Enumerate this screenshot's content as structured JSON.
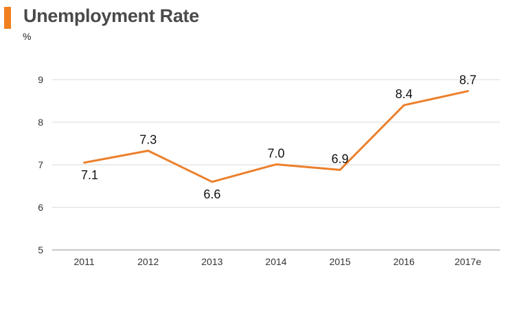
{
  "title": "Unemployment Rate",
  "unit_label": "%",
  "colors": {
    "accent": "#f07f1e",
    "line": "#ec7f2b",
    "grid": "#d9d9d9",
    "axis": "#8c8c8c"
  },
  "chart_data": {
    "type": "line",
    "title": "Unemployment Rate",
    "ylabel": "%",
    "xlabel": "",
    "categories": [
      "2011",
      "2012",
      "2013",
      "2014",
      "2015",
      "2016",
      "2017e"
    ],
    "series": [
      {
        "values": [
          7.05,
          7.33,
          6.6,
          7.01,
          6.88,
          8.4,
          8.73
        ]
      }
    ],
    "data_labels": [
      "7.1",
      "7.3",
      "6.6",
      "7.0",
      "6.9",
      "8.4",
      "8.7"
    ],
    "yticks": [
      "5",
      "6",
      "7",
      "8",
      "9"
    ],
    "ylim": [
      5,
      9
    ],
    "grid": true,
    "legend": "none"
  }
}
